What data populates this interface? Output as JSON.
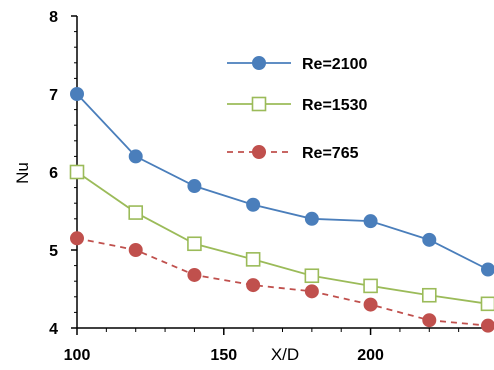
{
  "chart_data": {
    "type": "line",
    "title": "",
    "xlabel": "X/D",
    "ylabel": "Nu",
    "xlim": [
      100,
      240
    ],
    "ylim": [
      4,
      8
    ],
    "x_ticks": [
      100,
      150,
      200
    ],
    "x_tick_labels": [
      "100",
      "150",
      "200"
    ],
    "y_ticks": [
      4,
      5,
      6,
      7,
      8
    ],
    "y_tick_labels": [
      "4",
      "5",
      "6",
      "7",
      "8"
    ],
    "grid": false,
    "legend_position": "top-right",
    "x": [
      100,
      120,
      140,
      160,
      180,
      200,
      220,
      240
    ],
    "series": [
      {
        "name": "Re=2100",
        "values": [
          7.0,
          6.2,
          5.82,
          5.58,
          5.4,
          5.37,
          5.13,
          4.75
        ],
        "color": "#4a7ebb",
        "marker": "filled-circle",
        "line_style": "solid"
      },
      {
        "name": "Re=1530",
        "values": [
          6.0,
          5.48,
          5.08,
          4.88,
          4.67,
          4.54,
          4.42,
          4.31
        ],
        "color": "#9bbb59",
        "marker": "open-square",
        "line_style": "solid"
      },
      {
        "name": "Re=765",
        "values": [
          5.15,
          5.0,
          4.68,
          4.55,
          4.47,
          4.3,
          4.1,
          4.03
        ],
        "color": "#c0504d",
        "marker": "filled-circle",
        "line_style": "dashed"
      }
    ]
  }
}
